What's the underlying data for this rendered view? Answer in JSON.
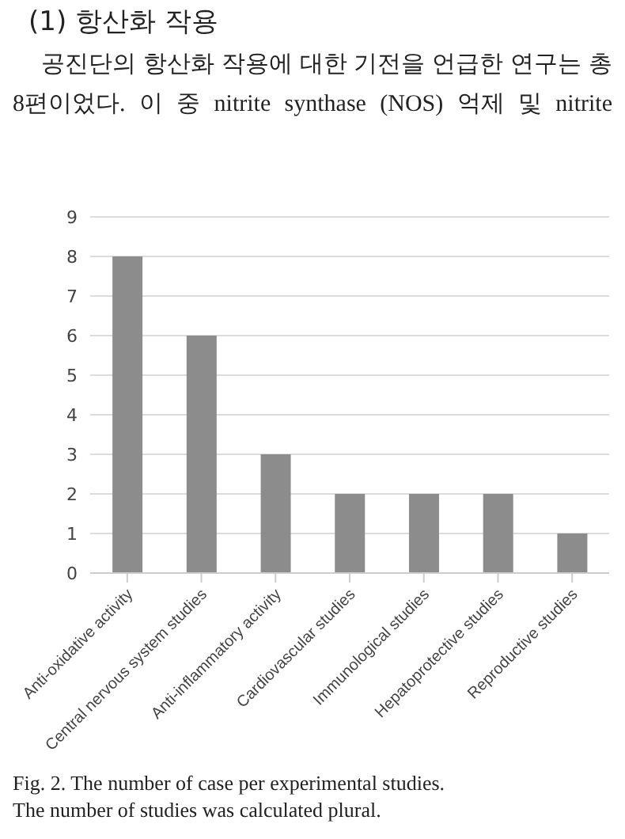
{
  "chart_data": {
    "type": "bar",
    "title": "(1) 항산화 작용",
    "annotations": [
      "공진단의 항산화 작용에 대한 기전을 언급한 연구는 총 8편이었다. 이 중 nitrite synthase (NOS) 억제 및 nitrite",
      "Fig. 2. The number of case per experimental studies.",
      "The number of studies was calculated plural."
    ],
    "categories": [
      "Anti-oxidative activity",
      "Central nervous system studies",
      "Anti-inflammatory activity",
      "Cardiovascular studies",
      "Immunological studies",
      "Hepatoprotective studies",
      "Reproductive studies"
    ],
    "values": [
      8,
      6,
      3,
      2,
      2,
      2,
      1
    ],
    "color": "#8c8c8c",
    "ylim": [
      0,
      9
    ],
    "yticks": [
      0,
      1,
      2,
      3,
      4,
      5,
      6,
      7,
      8,
      9
    ],
    "grid": "y"
  }
}
